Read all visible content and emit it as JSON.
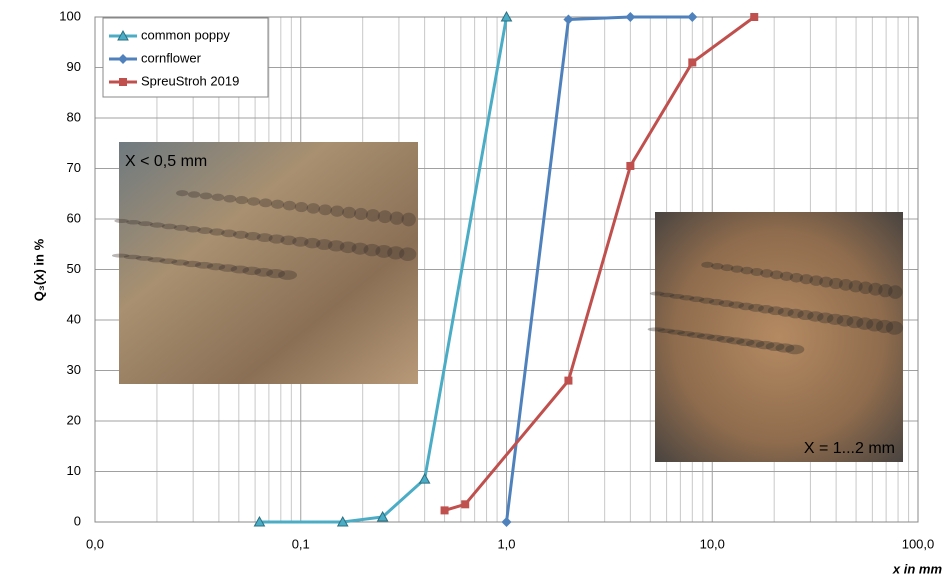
{
  "chart_data": {
    "type": "line",
    "log_x": true,
    "grid": true,
    "minor_grid": true,
    "legend": "upper left",
    "ylabel": "Q₃(x) in %",
    "xlabel": "x in mm",
    "xlim": [
      0.01,
      100
    ],
    "ylim": [
      0,
      100
    ],
    "xticks": [
      {
        "value": 0.01,
        "label": "0,0"
      },
      {
        "value": 0.1,
        "label": "0,1"
      },
      {
        "value": 1,
        "label": "1,0"
      },
      {
        "value": 10,
        "label": "10,0"
      },
      {
        "value": 100,
        "label": "100,0"
      }
    ],
    "yticks": [
      0,
      10,
      20,
      30,
      40,
      50,
      60,
      70,
      80,
      90,
      100
    ],
    "series": [
      {
        "name": "common poppy",
        "color": "#4bacc6",
        "marker": "triangle",
        "x": [
          0.063,
          0.16,
          0.25,
          0.4,
          1.0
        ],
        "values": [
          0,
          0,
          1,
          8.5,
          100
        ]
      },
      {
        "name": "cornflower",
        "color": "#4f81bd",
        "marker": "diamond",
        "x": [
          1.0,
          2.0,
          4.0,
          8.0
        ],
        "values": [
          0,
          99.5,
          100,
          100
        ]
      },
      {
        "name": "SpreuStroh 2019",
        "color": "#c0504d",
        "marker": "square",
        "x": [
          0.5,
          0.63,
          2.0,
          4.0,
          8.0,
          16.0
        ],
        "values": [
          2.3,
          3.5,
          28,
          70.5,
          91,
          100
        ]
      }
    ],
    "annotations": [
      "X < 0,5 mm",
      "X = 1...2 mm"
    ]
  }
}
